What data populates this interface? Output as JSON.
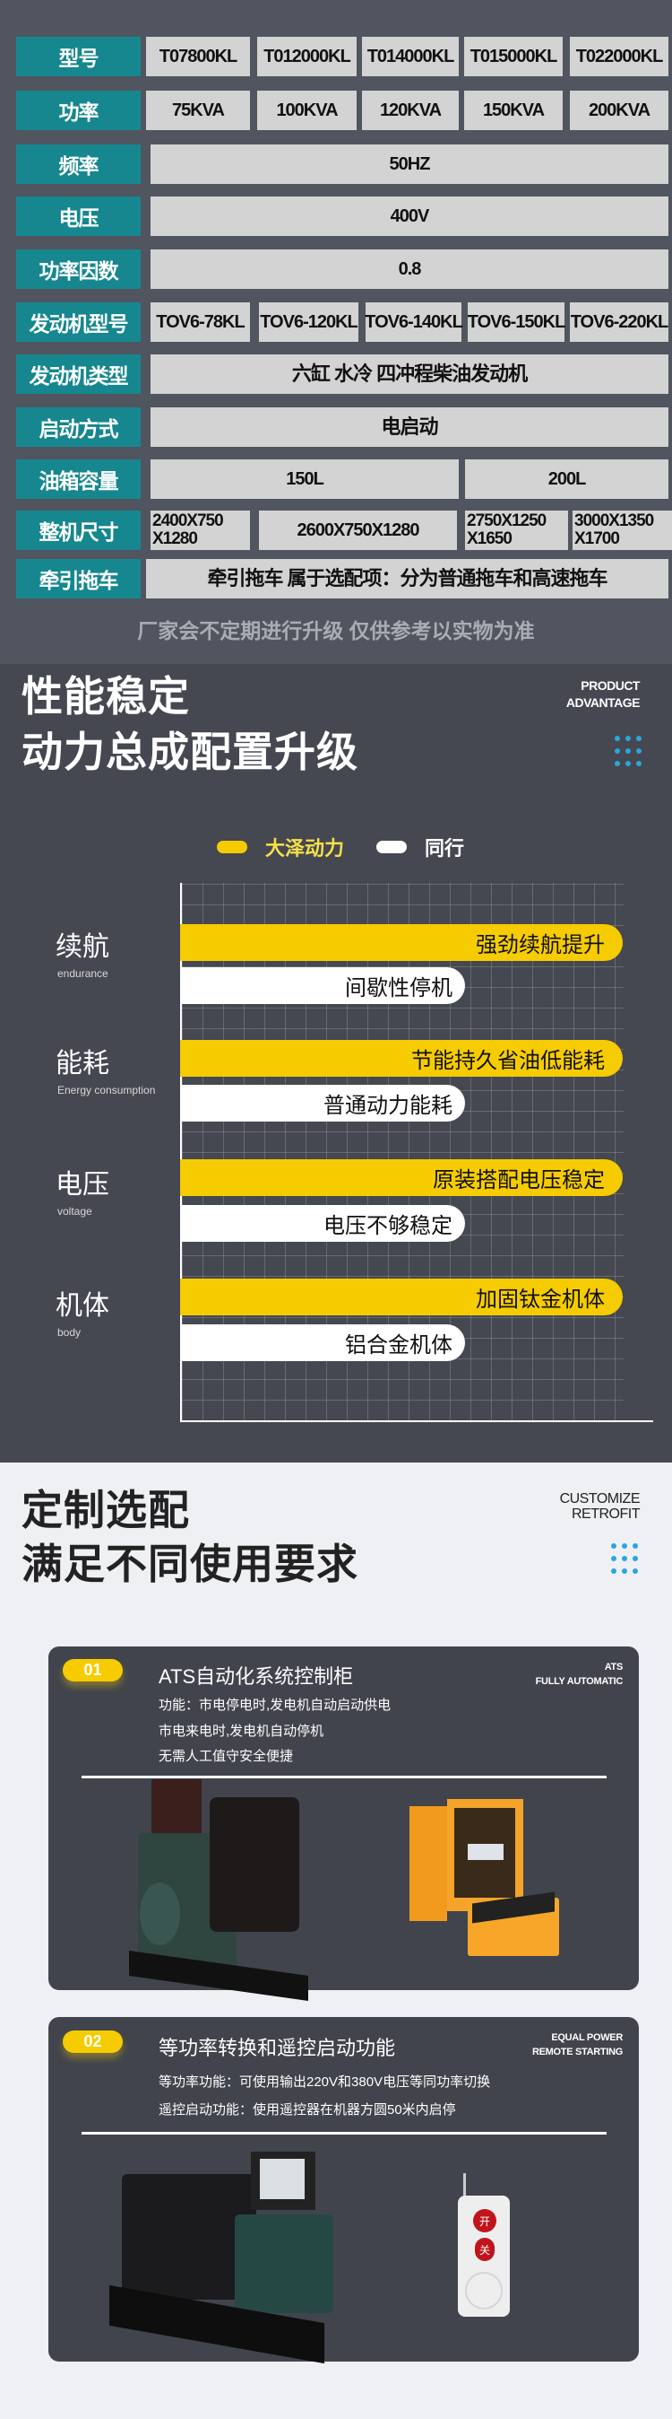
{
  "spec_table": {
    "rows": [
      {
        "label": "型号",
        "cells": [
          "T07800KL",
          "T012000KL",
          "T014000KL",
          "T015000KL",
          "T022000KL"
        ]
      },
      {
        "label": "功率",
        "cells": [
          "75KVA",
          "100KVA",
          "120KVA",
          "150KVA",
          "200KVA"
        ]
      },
      {
        "label": "频率",
        "cells": [
          "50HZ"
        ]
      },
      {
        "label": "电压",
        "cells": [
          "400V"
        ]
      },
      {
        "label": "功率因数",
        "cells": [
          "0.8"
        ]
      },
      {
        "label": "发动机型号",
        "cells": [
          "TOV6-78KL",
          "TOV6-120KL",
          "TOV6-140KL",
          "TOV6-150KL",
          "TOV6-220KL"
        ]
      },
      {
        "label": "发动机类型",
        "cells": [
          "六缸  水冷  四冲程柴油发动机"
        ]
      },
      {
        "label": "启动方式",
        "cells": [
          "电启动"
        ]
      },
      {
        "label": "油箱容量",
        "cells": [
          "150L",
          "200L"
        ]
      },
      {
        "label": "整机尺寸",
        "cells": [
          "2400X750 X1280",
          "2600X750X1280",
          "2750X1250 X1650",
          "3000X1350 X1700"
        ]
      },
      {
        "label": "牵引拖车",
        "cells": [
          "牵引拖车  属于选配项：分为普通拖车和高速拖车"
        ]
      }
    ],
    "note": "厂家会不定期进行升级  仅供参考以实物为准"
  },
  "advantage": {
    "title_line1": "性能稳定",
    "title_line2": "动力总成配置升级",
    "eng": [
      "PRODUCT",
      "ADVANTAGE"
    ],
    "legend": [
      {
        "label": "大泽动力",
        "color": "#f6cc00"
      },
      {
        "label": "同行",
        "color": "#ffffff"
      }
    ],
    "categories": [
      {
        "name": "续航",
        "sub": "endurance",
        "ours": "强劲续航提升",
        "theirs": "间歇性停机"
      },
      {
        "name": "能耗",
        "sub": "Energy consumption",
        "ours": "节能持久省油低能耗",
        "theirs": "普通动力能耗"
      },
      {
        "name": "电压",
        "sub": "voltage",
        "ours": "原装搭配电压稳定",
        "theirs": "电压不够稳定"
      },
      {
        "name": "机体",
        "sub": "body",
        "ours": "加固钛金机体",
        "theirs": "铝合金机体"
      }
    ]
  },
  "customize": {
    "title_line1": "定制选配",
    "title_line2": "满足不同使用要求",
    "eng": [
      "CUSTOMIZE",
      "RETROFIT"
    ],
    "cards": [
      {
        "badge": "01",
        "title": "ATS自动化系统控制柜",
        "eng": [
          "ATS",
          "FULLY AUTOMATIC"
        ],
        "lines": [
          "功能：市电停电时,发电机自动启动供电",
          "市电来电时,发电机自动停机",
          "无需人工值守安全便捷"
        ]
      },
      {
        "badge": "02",
        "title": "等功率转换和遥控启动功能",
        "eng": [
          "EQUAL POWER",
          "REMOTE STARTING"
        ],
        "lines": [
          "等功率功能：可使用输出220V和380V电压等同功率切换",
          "遥控启动功能：使用遥控器在机器方圆50米内启停"
        ],
        "remote_buttons": [
          "开",
          "关"
        ]
      }
    ]
  },
  "colors": {
    "teal": "#16878f",
    "yellow": "#f6cc00",
    "dot_blue": "#29a6dd"
  }
}
